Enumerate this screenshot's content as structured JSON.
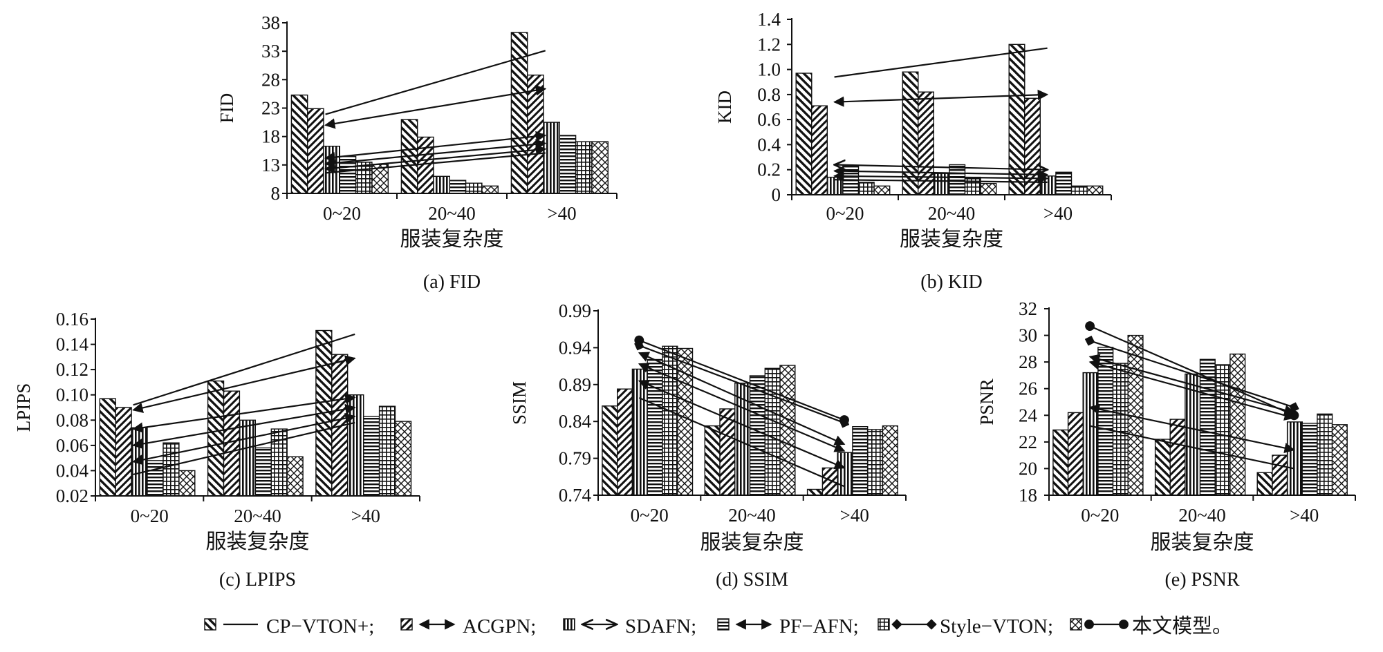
{
  "series_names": [
    "CP-VTON+",
    "ACGPN",
    "SDAFN",
    "PF-AFN",
    "Style-VTON",
    "本文模型"
  ],
  "legend": {
    "items": [
      {
        "label": "CP−VTON+;",
        "pattern": "diag",
        "line": "plain"
      },
      {
        "label": "ACGPN;",
        "pattern": "diag2",
        "line": "double-filled"
      },
      {
        "label": "SDAFN;",
        "pattern": "vert",
        "line": "double-open"
      },
      {
        "label": "PF−AFN;",
        "pattern": "horiz",
        "line": "double-filled"
      },
      {
        "label": "Style−VTON;",
        "pattern": "grid",
        "line": "diamonds"
      },
      {
        "label": "本文模型。",
        "pattern": "cross",
        "line": "dots"
      }
    ]
  },
  "chart_data": [
    {
      "type": "bar",
      "title": "(a) FID",
      "ylabel": "FID",
      "xlabel": "服装复杂度",
      "categories": [
        "0~20",
        "20~40",
        ">40"
      ],
      "ylim": [
        8,
        38
      ],
      "yticks": [
        "8",
        "13",
        "18",
        "23",
        "28",
        "33",
        "38"
      ],
      "series": [
        {
          "name": "CP-VTON+",
          "values": [
            25.3,
            21.0,
            36.3
          ]
        },
        {
          "name": "ACGPN",
          "values": [
            22.9,
            17.9,
            28.8
          ]
        },
        {
          "name": "SDAFN",
          "values": [
            16.3,
            11.0,
            20.5
          ]
        },
        {
          "name": "PF-AFN",
          "values": [
            14.5,
            10.3,
            18.2
          ]
        },
        {
          "name": "Style-VTON",
          "values": [
            13.5,
            9.8,
            17.1
          ]
        },
        {
          "name": "本文模型",
          "values": [
            13.1,
            9.3,
            17.1
          ]
        }
      ],
      "trend_lines": [
        {
          "from": [
            0.35,
            21.9
          ],
          "to": [
            2.35,
            33.1
          ],
          "style": "plain"
        },
        {
          "from": [
            0.35,
            20.0
          ],
          "to": [
            2.35,
            26.4
          ],
          "style": "double-filled"
        },
        {
          "from": [
            0.35,
            14.2
          ],
          "to": [
            2.35,
            18.2
          ],
          "style": "double-filled"
        },
        {
          "from": [
            0.35,
            13.2
          ],
          "to": [
            2.35,
            16.8
          ],
          "style": "double-filled"
        },
        {
          "from": [
            0.35,
            12.3
          ],
          "to": [
            2.35,
            15.8
          ],
          "style": "double-filled"
        },
        {
          "from": [
            0.35,
            11.6
          ],
          "to": [
            2.35,
            15.1
          ],
          "style": "plain"
        }
      ]
    },
    {
      "type": "bar",
      "title": "(b) KID",
      "ylabel": "KID",
      "xlabel": "服装复杂度",
      "categories": [
        "0~20",
        "20~40",
        ">40"
      ],
      "ylim": [
        0,
        1.4
      ],
      "yticks": [
        "0",
        "0.2",
        "0.4",
        "0.6",
        "0.8",
        "1.0",
        "1.2",
        "1.4"
      ],
      "series": [
        {
          "name": "CP-VTON+",
          "values": [
            0.97,
            0.98,
            1.2
          ]
        },
        {
          "name": "ACGPN",
          "values": [
            0.71,
            0.82,
            0.77
          ]
        },
        {
          "name": "SDAFN",
          "values": [
            0.14,
            0.17,
            0.15
          ]
        },
        {
          "name": "PF-AFN",
          "values": [
            0.23,
            0.24,
            0.18
          ]
        },
        {
          "name": "Style-VTON",
          "values": [
            0.1,
            0.14,
            0.07
          ]
        },
        {
          "name": "本文模型",
          "values": [
            0.07,
            0.09,
            0.07
          ]
        }
      ],
      "trend_lines": [
        {
          "from": [
            0.4,
            0.94
          ],
          "to": [
            2.4,
            1.17
          ],
          "style": "plain"
        },
        {
          "from": [
            0.4,
            0.74
          ],
          "to": [
            2.4,
            0.8
          ],
          "style": "double-filled"
        },
        {
          "from": [
            0.4,
            0.24
          ],
          "to": [
            2.4,
            0.2
          ],
          "style": "double-open"
        },
        {
          "from": [
            0.4,
            0.19
          ],
          "to": [
            2.4,
            0.16
          ],
          "style": "double-filled"
        },
        {
          "from": [
            0.4,
            0.15
          ],
          "to": [
            2.4,
            0.13
          ],
          "style": "double-filled"
        },
        {
          "from": [
            0.4,
            0.12
          ],
          "to": [
            2.4,
            0.1
          ],
          "style": "plain"
        }
      ]
    },
    {
      "type": "bar",
      "title": "(c) LPIPS",
      "ylabel": "LPIPS",
      "xlabel": "服装复杂度",
      "categories": [
        "0~20",
        "20~40",
        ">40"
      ],
      "ylim": [
        0.02,
        0.16
      ],
      "yticks": [
        "0.02",
        "0.04",
        "0.06",
        "0.08",
        "0.10",
        "0.12",
        "0.14",
        "0.16"
      ],
      "series": [
        {
          "name": "CP-VTON+",
          "values": [
            0.097,
            0.111,
            0.151
          ]
        },
        {
          "name": "ACGPN",
          "values": [
            0.09,
            0.103,
            0.132
          ]
        },
        {
          "name": "SDAFN",
          "values": [
            0.074,
            0.08,
            0.1
          ]
        },
        {
          "name": "PF-AFN",
          "values": [
            0.048,
            0.058,
            0.083
          ]
        },
        {
          "name": "Style-VTON",
          "values": [
            0.062,
            0.073,
            0.091
          ]
        },
        {
          "name": "本文模型",
          "values": [
            0.04,
            0.051,
            0.079
          ]
        }
      ],
      "trend_lines": [
        {
          "from": [
            0.35,
            0.092
          ],
          "to": [
            2.4,
            0.148
          ],
          "style": "plain"
        },
        {
          "from": [
            0.35,
            0.088
          ],
          "to": [
            2.4,
            0.129
          ],
          "style": "double-filled"
        },
        {
          "from": [
            0.35,
            0.073
          ],
          "to": [
            2.4,
            0.098
          ],
          "style": "double-filled"
        },
        {
          "from": [
            0.35,
            0.06
          ],
          "to": [
            2.4,
            0.09
          ],
          "style": "double-filled"
        },
        {
          "from": [
            0.35,
            0.047
          ],
          "to": [
            2.4,
            0.083
          ],
          "style": "double-filled"
        },
        {
          "from": [
            0.35,
            0.037
          ],
          "to": [
            2.4,
            0.078
          ],
          "style": "plain"
        }
      ]
    },
    {
      "type": "bar",
      "title": "(d) SSIM",
      "ylabel": "SSIM",
      "xlabel": "服装复杂度",
      "categories": [
        "0~20",
        "20~40",
        ">40"
      ],
      "ylim": [
        0.74,
        0.99
      ],
      "yticks": [
        "0.74",
        "0.79",
        "0.84",
        "0.89",
        "0.94",
        "0.99"
      ],
      "series": [
        {
          "name": "CP-VTON+",
          "values": [
            0.861,
            0.834,
            0.748
          ]
        },
        {
          "name": "ACGPN",
          "values": [
            0.884,
            0.857,
            0.777
          ]
        },
        {
          "name": "SDAFN",
          "values": [
            0.911,
            0.892,
            0.798
          ]
        },
        {
          "name": "PF-AFN",
          "values": [
            0.924,
            0.902,
            0.833
          ]
        },
        {
          "name": "Style-VTON",
          "values": [
            0.942,
            0.912,
            0.829
          ]
        },
        {
          "name": "本文模型",
          "values": [
            0.939,
            0.916,
            0.834
          ]
        }
      ],
      "trend_lines": [
        {
          "from": [
            0.4,
            0.95
          ],
          "to": [
            2.4,
            0.842
          ],
          "style": "dots"
        },
        {
          "from": [
            0.4,
            0.943
          ],
          "to": [
            2.4,
            0.838
          ],
          "style": "diamonds"
        },
        {
          "from": [
            0.4,
            0.933
          ],
          "to": [
            2.4,
            0.809
          ],
          "style": "double-filled"
        },
        {
          "from": [
            0.4,
            0.918
          ],
          "to": [
            2.4,
            0.8
          ],
          "style": "double-filled"
        },
        {
          "from": [
            0.4,
            0.895
          ],
          "to": [
            2.4,
            0.777
          ],
          "style": "double-filled"
        },
        {
          "from": [
            0.4,
            0.872
          ],
          "to": [
            2.4,
            0.752
          ],
          "style": "plain"
        }
      ]
    },
    {
      "type": "bar",
      "title": "(e) PSNR",
      "ylabel": "PSNR",
      "xlabel": "服装复杂度",
      "categories": [
        "0~20",
        "20~40",
        ">40"
      ],
      "ylim": [
        18,
        32
      ],
      "yticks": [
        "18",
        "20",
        "22",
        "24",
        "26",
        "28",
        "30",
        "32"
      ],
      "series": [
        {
          "name": "CP-VTON+",
          "values": [
            22.9,
            22.2,
            19.7
          ]
        },
        {
          "name": "ACGPN",
          "values": [
            24.2,
            23.7,
            21.0
          ]
        },
        {
          "name": "SDAFN",
          "values": [
            27.2,
            27.1,
            23.5
          ]
        },
        {
          "name": "PF-AFN",
          "values": [
            29.1,
            28.2,
            23.4
          ]
        },
        {
          "name": "Style-VTON",
          "values": [
            27.9,
            27.8,
            24.1
          ]
        },
        {
          "name": "本文模型",
          "values": [
            30.0,
            28.6,
            23.3
          ]
        }
      ],
      "trend_lines": [
        {
          "from": [
            0.4,
            30.7
          ],
          "to": [
            2.4,
            24.0
          ],
          "style": "dots"
        },
        {
          "from": [
            0.4,
            29.6
          ],
          "to": [
            2.4,
            24.6
          ],
          "style": "diamonds"
        },
        {
          "from": [
            0.4,
            28.4
          ],
          "to": [
            2.4,
            24.2
          ],
          "style": "double-filled"
        },
        {
          "from": [
            0.4,
            28.0
          ],
          "to": [
            2.4,
            23.8
          ],
          "style": "double-filled"
        },
        {
          "from": [
            0.4,
            24.6
          ],
          "to": [
            2.4,
            21.4
          ],
          "style": "double-filled"
        },
        {
          "from": [
            0.4,
            23.2
          ],
          "to": [
            2.4,
            20.0
          ],
          "style": "plain"
        }
      ]
    }
  ]
}
